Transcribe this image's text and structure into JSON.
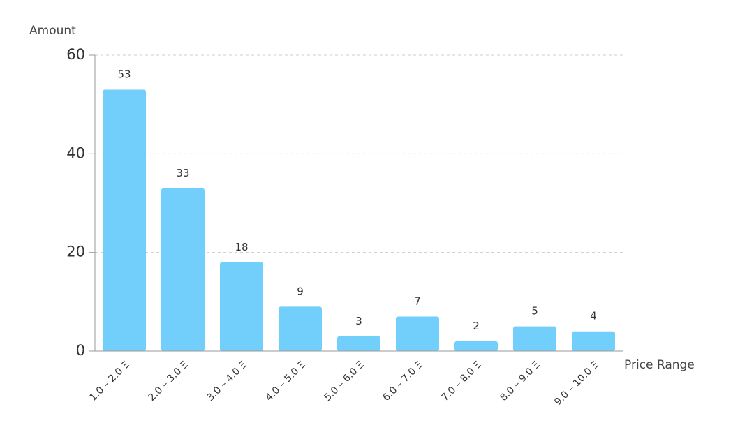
{
  "chart_data": {
    "type": "bar",
    "y_label": "Amount",
    "x_label": "Price Range",
    "categories": [
      "1.0 – 2.0 Ξ",
      "2.0 – 3.0 Ξ",
      "3.0 – 4.0 Ξ",
      "4.0 – 5.0 Ξ",
      "5.0 – 6.0 Ξ",
      "6.0 – 7.0 Ξ",
      "7.0 – 8.0 Ξ",
      "8.0 – 9.0 Ξ",
      "9.0 – 10.0 Ξ"
    ],
    "values": [
      53,
      33,
      18,
      9,
      3,
      7,
      2,
      5,
      4
    ],
    "color": "#72cffb",
    "ylim": [
      0,
      60
    ],
    "yticks": [
      0,
      20,
      40,
      60
    ],
    "grid": true
  }
}
